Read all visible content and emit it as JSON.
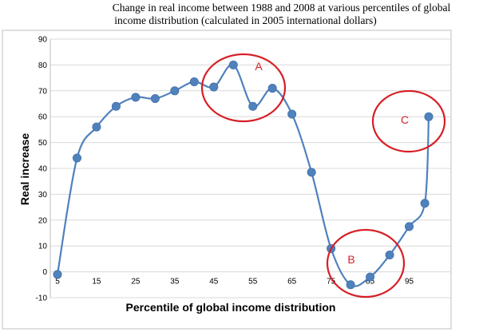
{
  "chart_data": {
    "type": "line",
    "title": [
      "Change in real income between 1988 and 2008 at various percentiles of global",
      "income distribution (calculated in 2005 international dollars)"
    ],
    "xlabel": "Percentile of global income distribution",
    "ylabel": "Real increase",
    "xlim": [
      5,
      100
    ],
    "ylim": [
      -10,
      90
    ],
    "yticks": [
      -10,
      0,
      10,
      20,
      30,
      40,
      50,
      60,
      70,
      80,
      90
    ],
    "xticks": [
      5,
      15,
      25,
      35,
      45,
      55,
      65,
      75,
      85,
      95
    ],
    "grid": "horizontal",
    "series": [
      {
        "color": "#4f81bd",
        "points": [
          {
            "x": 5,
            "y": -1
          },
          {
            "x": 10,
            "y": 44
          },
          {
            "x": 15,
            "y": 56
          },
          {
            "x": 20,
            "y": 64
          },
          {
            "x": 25,
            "y": 67.5
          },
          {
            "x": 30,
            "y": 67
          },
          {
            "x": 35,
            "y": 70
          },
          {
            "x": 40,
            "y": 73.5
          },
          {
            "x": 45,
            "y": 71.5
          },
          {
            "x": 50,
            "y": 80
          },
          {
            "x": 55,
            "y": 64
          },
          {
            "x": 60,
            "y": 71
          },
          {
            "x": 65,
            "y": 61
          },
          {
            "x": 70,
            "y": 38.5
          },
          {
            "x": 75,
            "y": 9
          },
          {
            "x": 80,
            "y": -5
          },
          {
            "x": 85,
            "y": -2
          },
          {
            "x": 90,
            "y": 6.5
          },
          {
            "x": 95,
            "y": 17.5
          },
          {
            "x": 99,
            "y": 26.5
          },
          {
            "x": 100,
            "y": 60
          }
        ]
      }
    ],
    "annotations": [
      {
        "label": "A",
        "color": "#d61f26"
      },
      {
        "label": "B",
        "color": "#d61f26"
      },
      {
        "label": "C",
        "color": "#d61f26"
      }
    ]
  }
}
